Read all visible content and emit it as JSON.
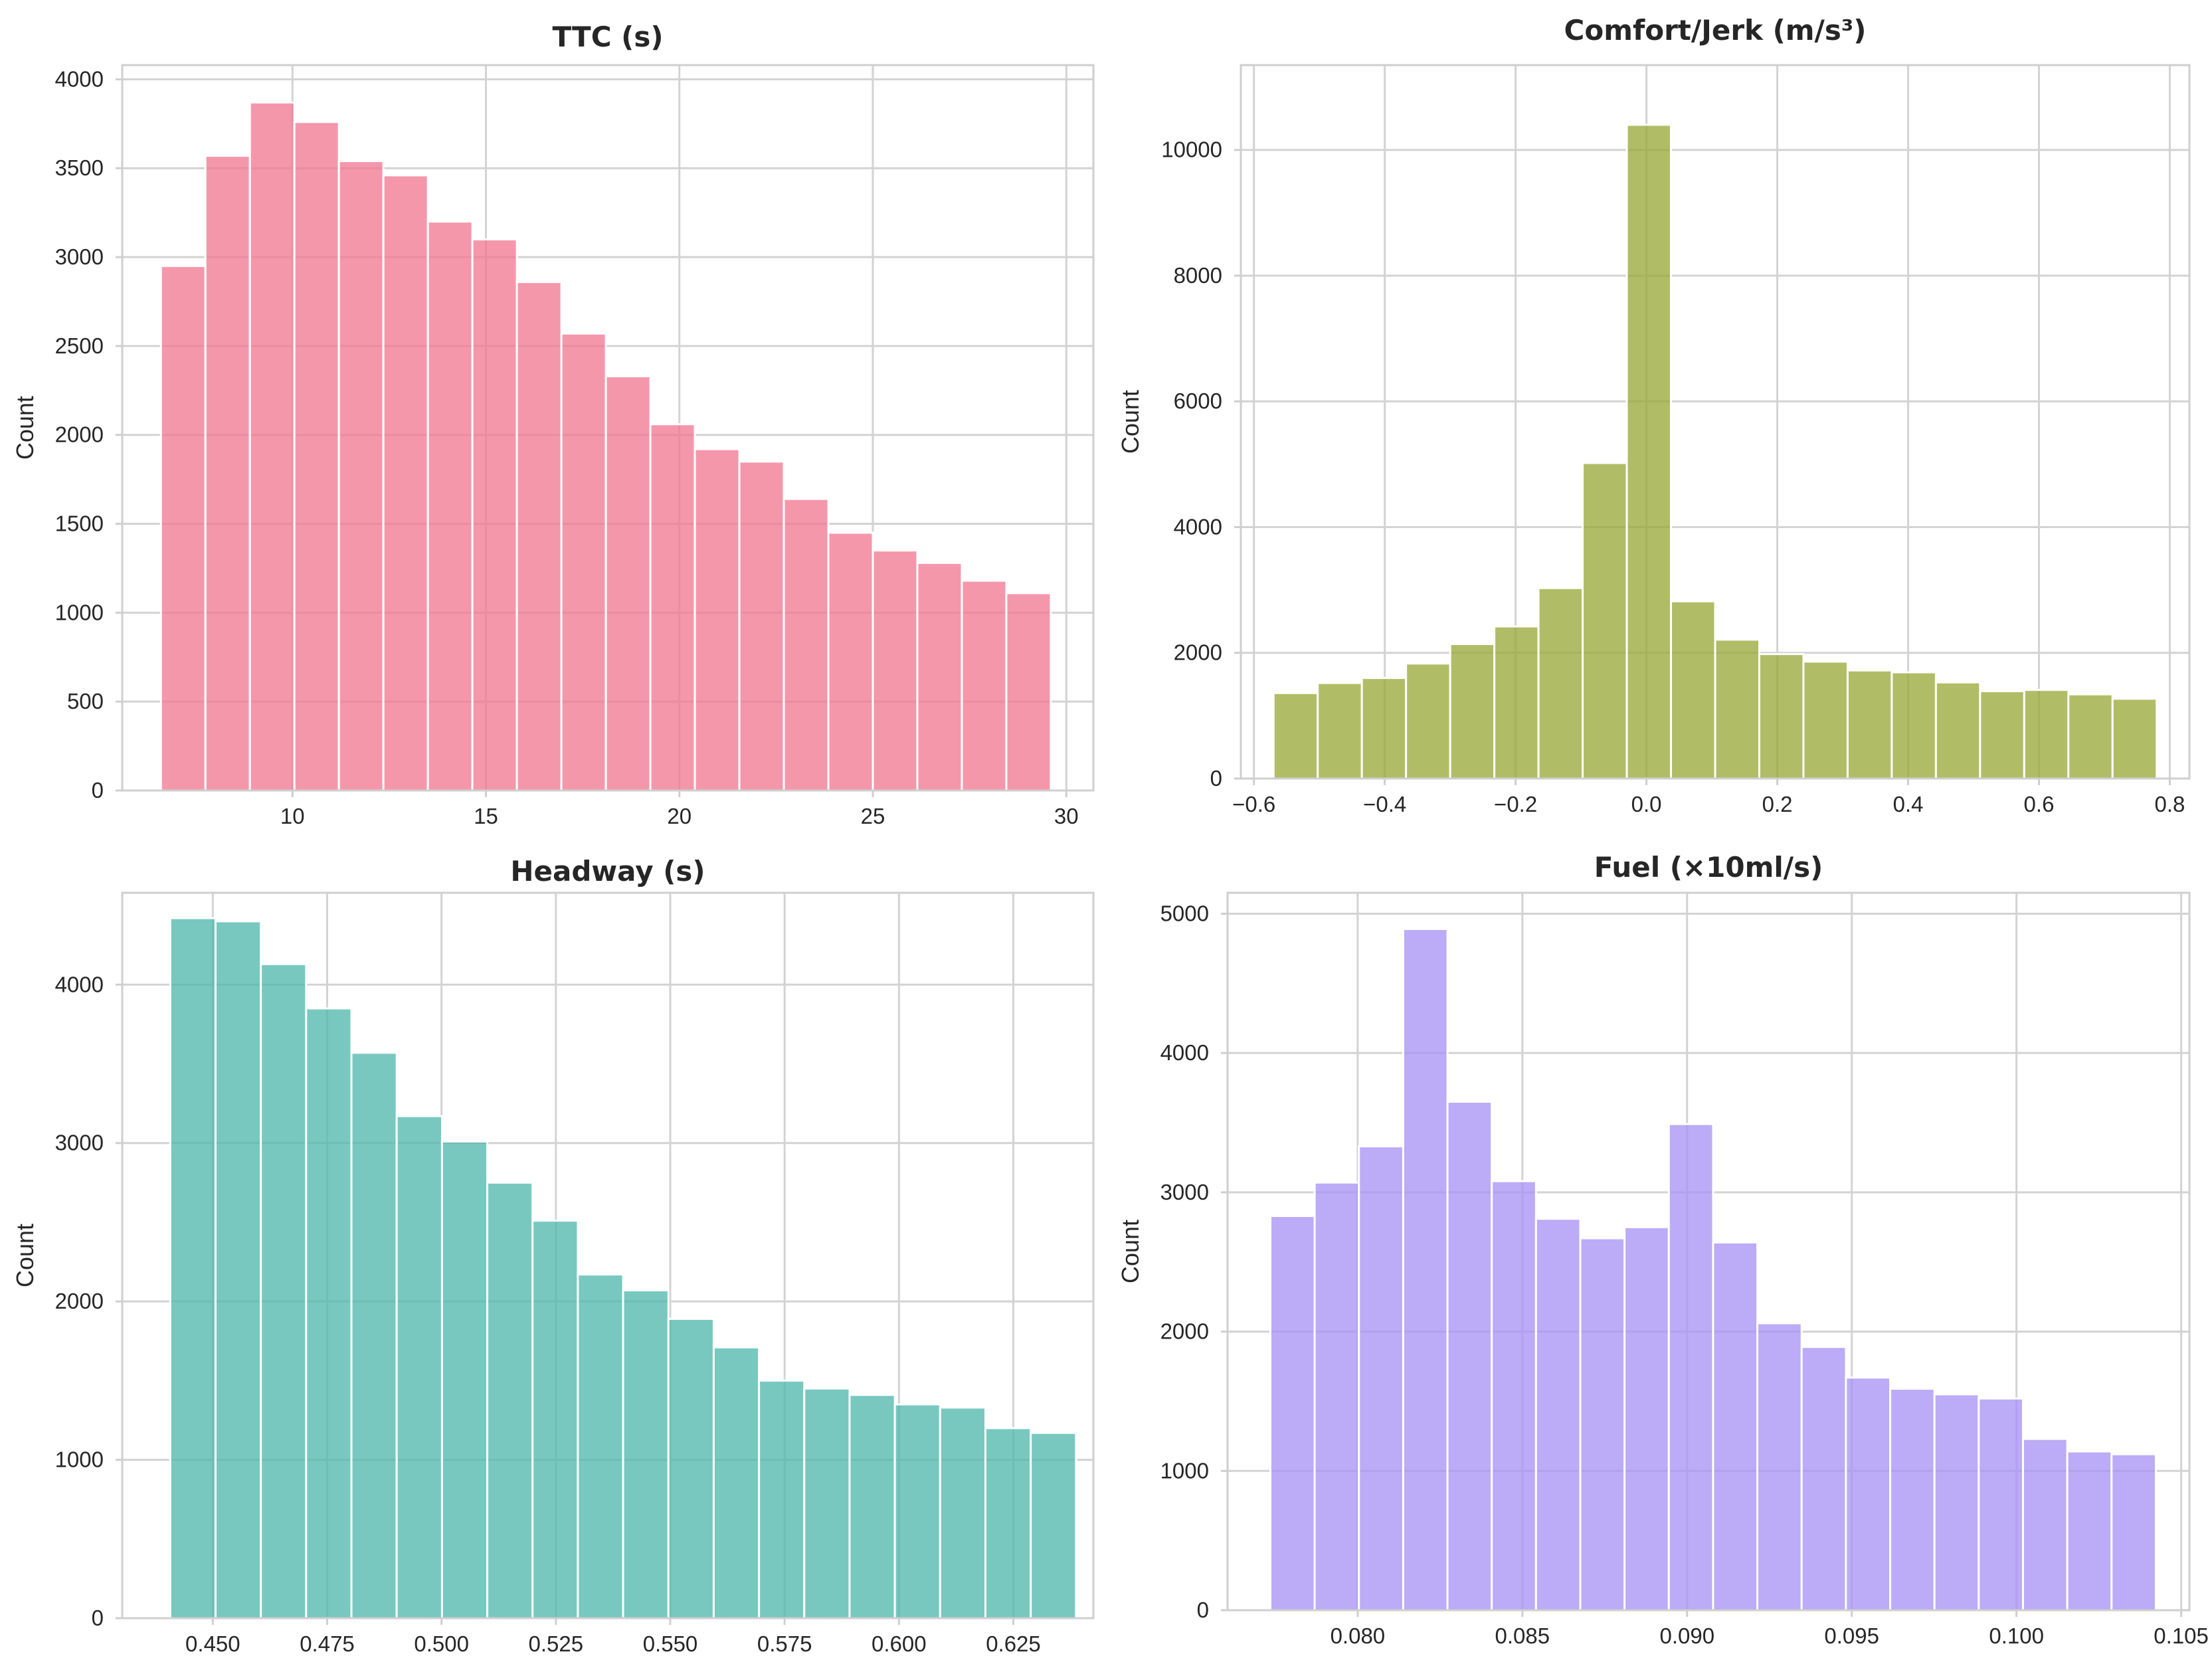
{
  "figure": {
    "background": "#ffffff"
  },
  "chart_data": [
    {
      "type": "bar",
      "id": "ttc",
      "title": "TTC (s)",
      "xlabel": "",
      "ylabel": "Count",
      "color": "#f27a94",
      "bin_start": 6.6,
      "bin_width": 1.15,
      "values": [
        2950,
        3570,
        3870,
        3760,
        3540,
        3460,
        3200,
        3100,
        2860,
        2570,
        2330,
        2060,
        1920,
        1850,
        1640,
        1450,
        1350,
        1280,
        1180,
        1110
      ],
      "xlim": [
        5.6,
        30.7
      ],
      "ylim": [
        0,
        4080
      ],
      "xticks": [
        10,
        15,
        20,
        25,
        30
      ],
      "xtick_labels": [
        "10",
        "15",
        "20",
        "25",
        "30"
      ],
      "yticks": [
        0,
        500,
        1000,
        1500,
        2000,
        2500,
        3000,
        3500,
        4000
      ],
      "ytick_labels": [
        "0",
        "500",
        "1000",
        "1500",
        "2000",
        "2500",
        "3000",
        "3500",
        "4000"
      ],
      "grid": true
    },
    {
      "type": "bar",
      "id": "jerk",
      "title": "Comfort/Jerk (m/s³)",
      "xlabel": "",
      "ylabel": "Count",
      "color": "#9aab3b",
      "bin_start": -0.57,
      "bin_width": 0.0675,
      "values": [
        1360,
        1520,
        1600,
        1830,
        2140,
        2420,
        3030,
        5020,
        10400,
        2820,
        2210,
        1980,
        1860,
        1720,
        1690,
        1530,
        1390,
        1410,
        1340,
        1270
      ],
      "xlim": [
        -0.62,
        0.83
      ],
      "ylim": [
        0,
        11350
      ],
      "xticks": [
        -0.6,
        -0.4,
        -0.2,
        0.0,
        0.2,
        0.4,
        0.6,
        0.8
      ],
      "xtick_labels": [
        "−0.6",
        "−0.4",
        "−0.2",
        "0.0",
        "0.2",
        "0.4",
        "0.6",
        "0.8"
      ],
      "yticks": [
        0,
        2000,
        4000,
        6000,
        8000,
        10000
      ],
      "ytick_labels": [
        "0",
        "2000",
        "4000",
        "6000",
        "8000",
        "10000"
      ],
      "grid": true
    },
    {
      "type": "bar",
      "id": "headway",
      "title": "Headway (s)",
      "xlabel": "",
      "ylabel": "Count",
      "color": "#52b8ae",
      "bin_start": 0.4407,
      "bin_width": 0.0099,
      "values": [
        4420,
        4400,
        4130,
        3850,
        3570,
        3170,
        3010,
        2750,
        2510,
        2170,
        2070,
        1890,
        1710,
        1500,
        1450,
        1410,
        1350,
        1330,
        1200,
        1170
      ],
      "xlim": [
        0.4302,
        0.6425
      ],
      "ylim": [
        0,
        4580
      ],
      "xticks": [
        0.45,
        0.475,
        0.5,
        0.525,
        0.55,
        0.575,
        0.6,
        0.625
      ],
      "xtick_labels": [
        "0.450",
        "0.475",
        "0.500",
        "0.525",
        "0.550",
        "0.575",
        "0.600",
        "0.625"
      ],
      "yticks": [
        0,
        1000,
        2000,
        3000,
        4000
      ],
      "ytick_labels": [
        "0",
        "1000",
        "2000",
        "3000",
        "4000"
      ],
      "grid": true
    },
    {
      "type": "bar",
      "id": "fuel",
      "title": "Fuel (×10ml/s)",
      "xlabel": "",
      "ylabel": "Count",
      "color": "#a993f3",
      "bin_start": 0.07735,
      "bin_width": 0.001344,
      "values": [
        2830,
        3070,
        3330,
        4890,
        3650,
        3080,
        2810,
        2670,
        2750,
        3490,
        2640,
        2060,
        1890,
        1670,
        1590,
        1550,
        1520,
        1230,
        1140,
        1120
      ],
      "xlim": [
        0.07605,
        0.10525
      ],
      "ylim": [
        0,
        5150
      ],
      "xticks": [
        0.08,
        0.085,
        0.09,
        0.095,
        0.1,
        0.105
      ],
      "xtick_labels": [
        "0.080",
        "0.085",
        "0.090",
        "0.095",
        "0.100",
        "0.105"
      ],
      "yticks": [
        0,
        1000,
        2000,
        3000,
        4000,
        5000
      ],
      "ytick_labels": [
        "0",
        "1000",
        "2000",
        "3000",
        "4000",
        "5000"
      ],
      "grid": true
    }
  ]
}
